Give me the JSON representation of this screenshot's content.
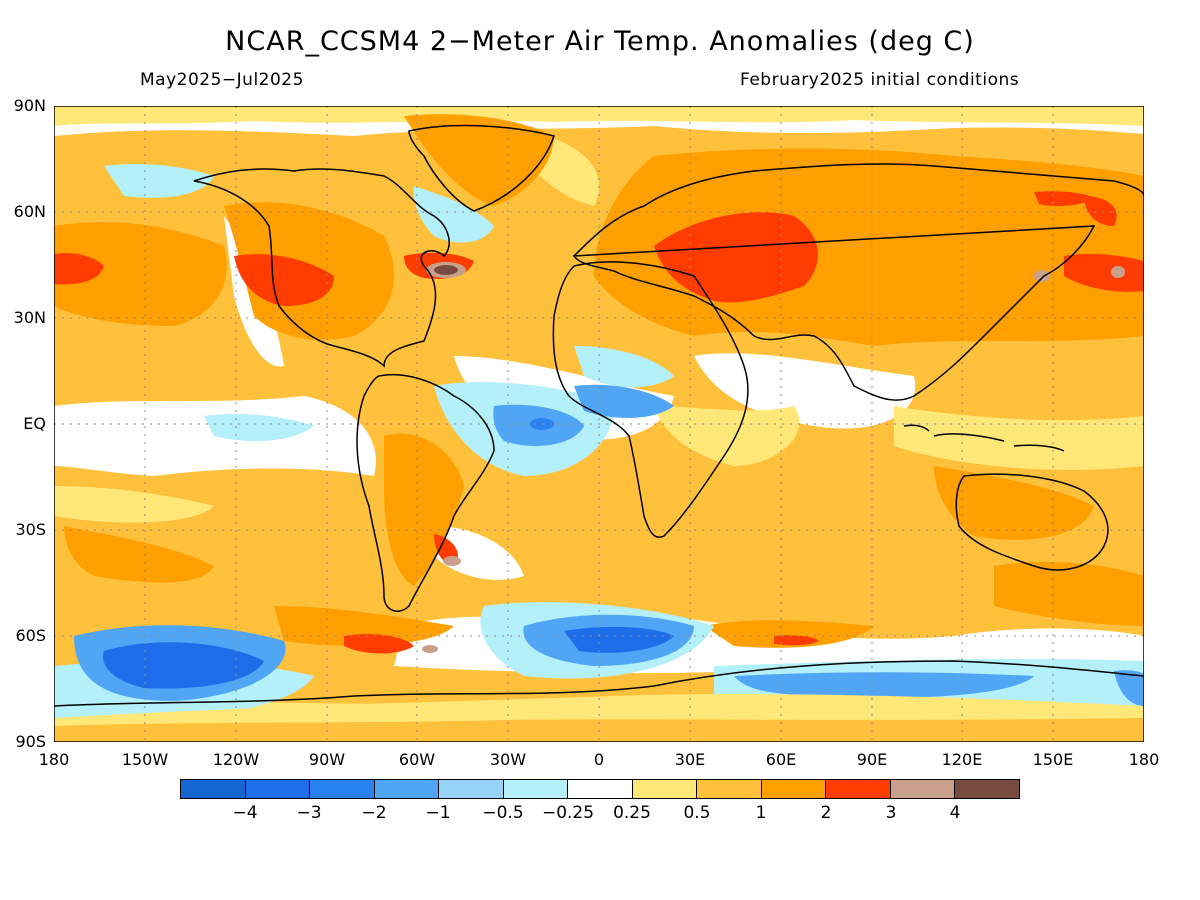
{
  "header": {
    "title": "NCAR_CCSM4 2−Meter Air Temp. Anomalies (deg C)",
    "period": "May2025−Jul2025",
    "initial_conditions": "February2025 initial conditions"
  },
  "axes": {
    "lat_labels": [
      "90N",
      "60N",
      "30N",
      "EQ",
      "30S",
      "60S",
      "90S"
    ],
    "lon_labels": [
      "180",
      "150W",
      "120W",
      "90W",
      "60W",
      "30W",
      "0",
      "30E",
      "60E",
      "90E",
      "120E",
      "150E",
      "180"
    ]
  },
  "colorbar": {
    "colors": [
      "#1464d2",
      "#1e6eeb",
      "#2882f0",
      "#50a5f5",
      "#96d2fa",
      "#b4f0fa",
      "#ffffff",
      "#ffe878",
      "#ffc03c",
      "#ffa000",
      "#ff3c00",
      "#c8a08c",
      "#784b41"
    ],
    "labels": [
      "−4",
      "−3",
      "−2",
      "−1",
      "−0.5",
      "−0.25",
      "0.25",
      "0.5",
      "1",
      "2",
      "3",
      "4"
    ]
  }
}
